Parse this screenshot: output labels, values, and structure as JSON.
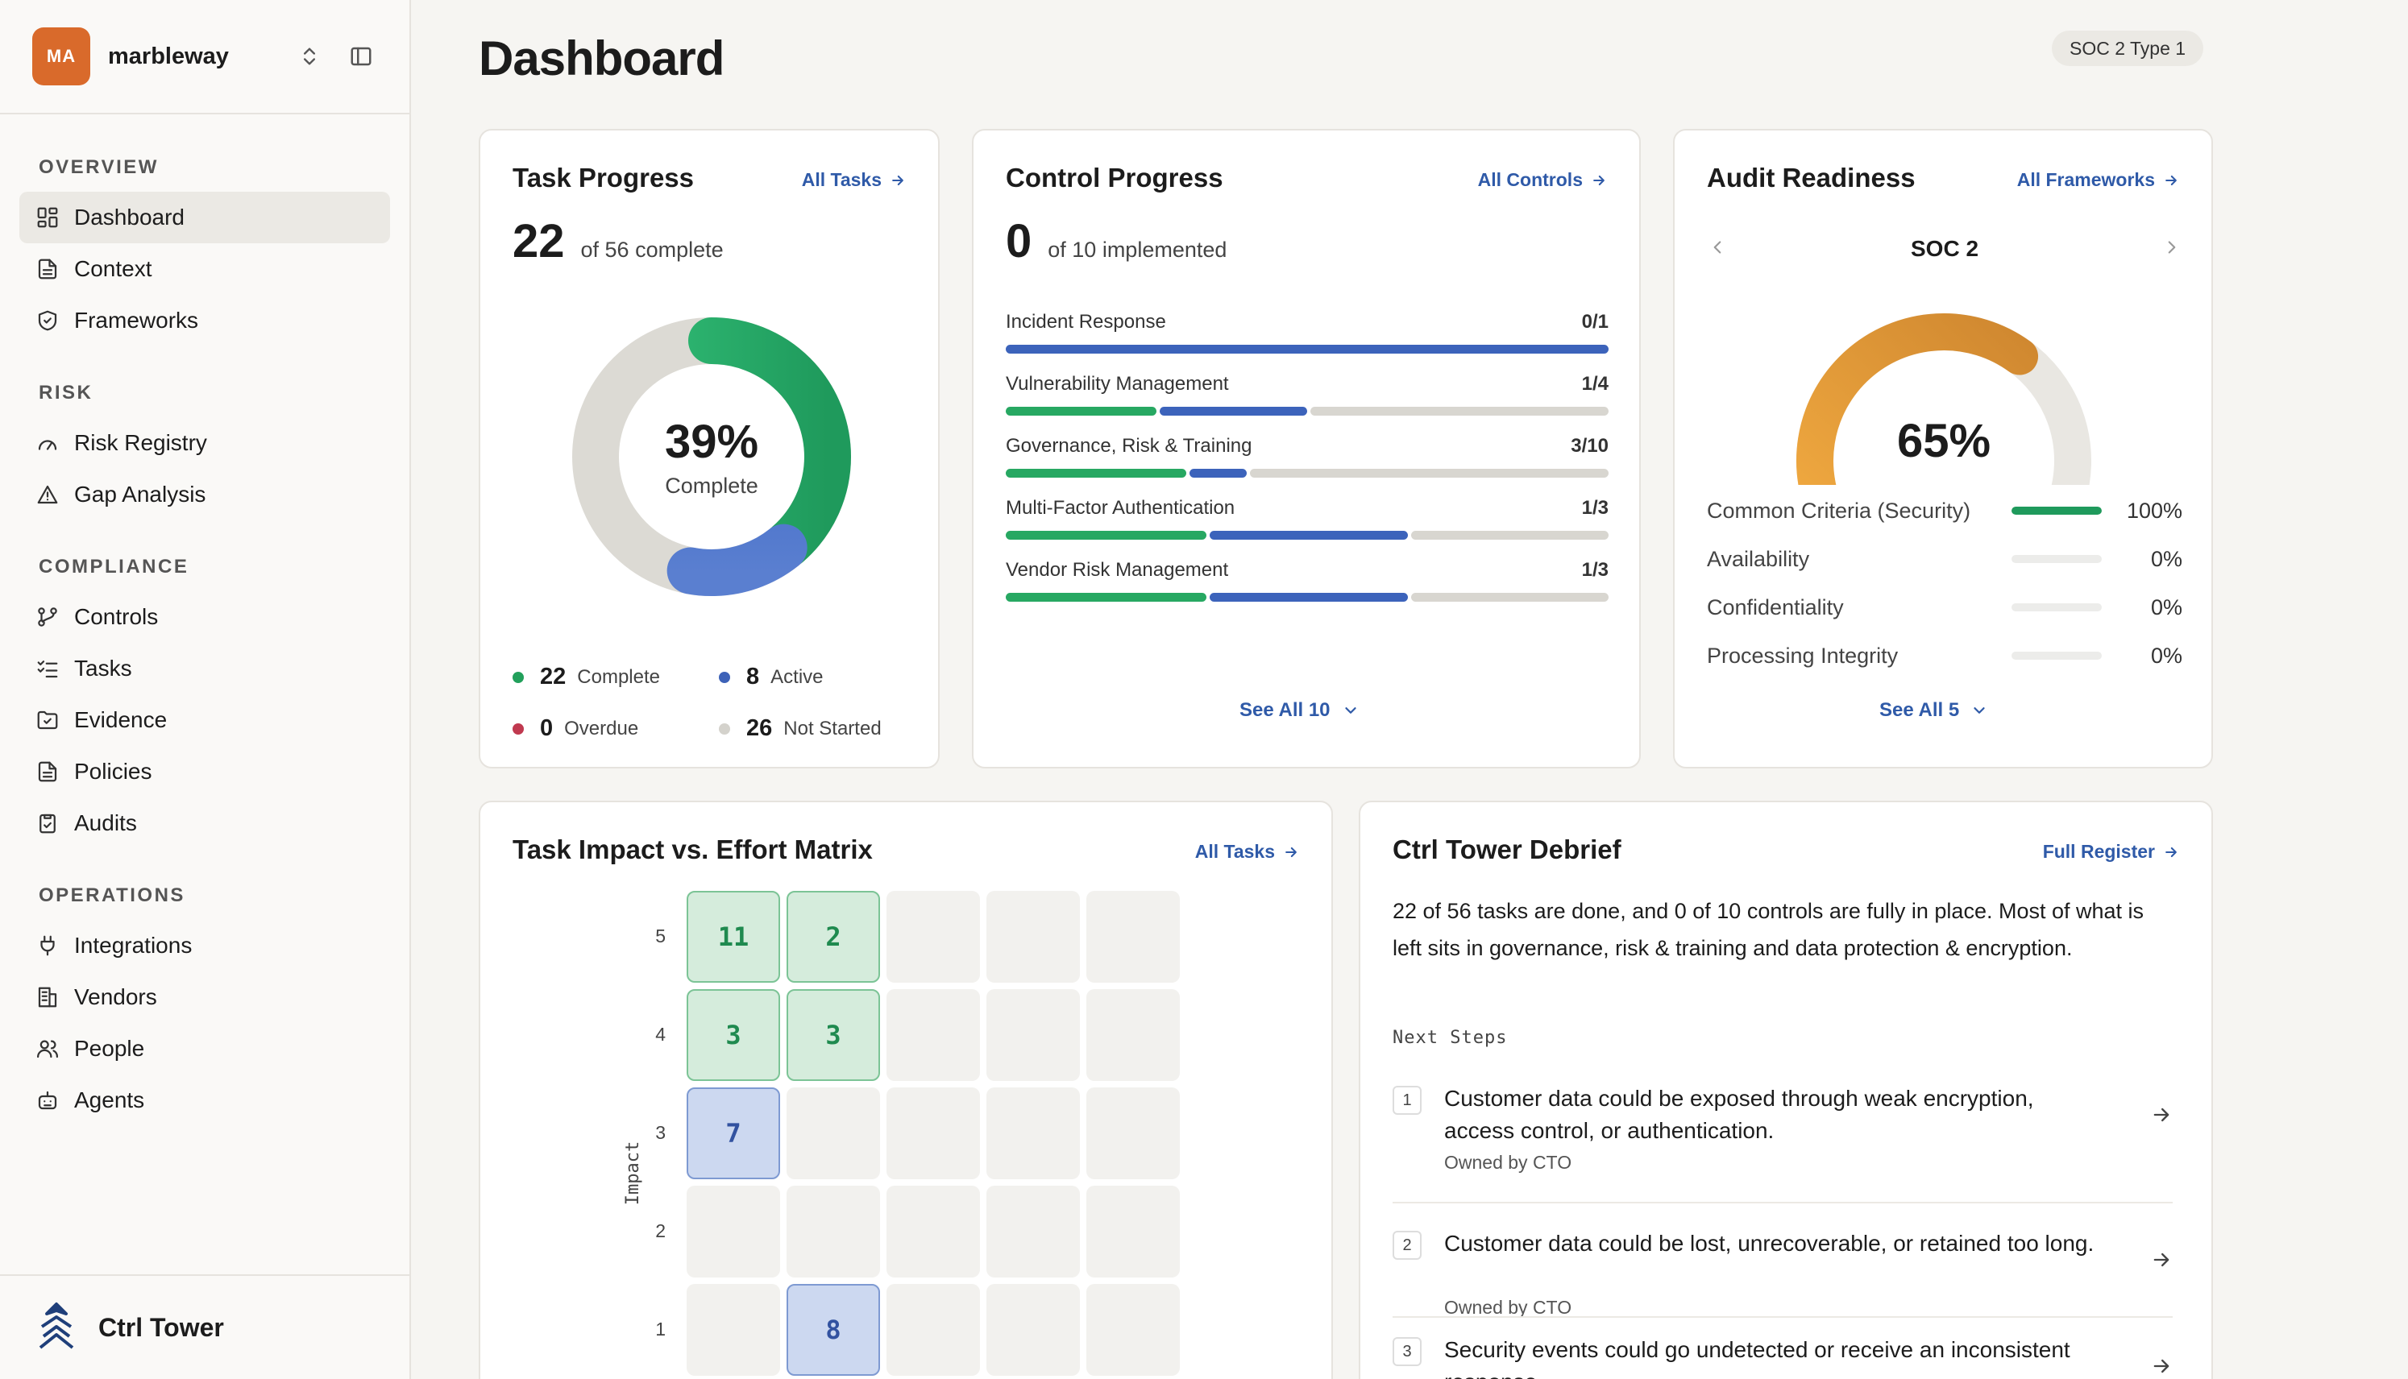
{
  "org": {
    "initials": "MA",
    "name": "marbleway"
  },
  "nav": {
    "sections": [
      {
        "heading": "OVERVIEW",
        "items": [
          {
            "label": "Dashboard",
            "icon": "dashboard-icon",
            "active": true
          },
          {
            "label": "Context",
            "icon": "document-icon"
          },
          {
            "label": "Frameworks",
            "icon": "shield-check-icon"
          }
        ]
      },
      {
        "heading": "RISK",
        "items": [
          {
            "label": "Risk Registry",
            "icon": "gauge-icon"
          },
          {
            "label": "Gap Analysis",
            "icon": "warning-icon"
          }
        ]
      },
      {
        "heading": "COMPLIANCE",
        "items": [
          {
            "label": "Controls",
            "icon": "branch-icon"
          },
          {
            "label": "Tasks",
            "icon": "checklist-icon"
          },
          {
            "label": "Evidence",
            "icon": "folder-check-icon"
          },
          {
            "label": "Policies",
            "icon": "document-icon"
          },
          {
            "label": "Audits",
            "icon": "clipboard-icon"
          }
        ]
      },
      {
        "heading": "OPERATIONS",
        "items": [
          {
            "label": "Integrations",
            "icon": "plug-icon"
          },
          {
            "label": "Vendors",
            "icon": "building-icon"
          },
          {
            "label": "People",
            "icon": "users-icon"
          },
          {
            "label": "Agents",
            "icon": "bot-icon"
          }
        ]
      }
    ]
  },
  "brand": {
    "name": "Ctrl Tower"
  },
  "page": {
    "title": "Dashboard",
    "framework_badge": "SOC 2 Type 1"
  },
  "task_progress": {
    "title": "Task Progress",
    "link": "All Tasks",
    "complete": "22",
    "of_text": "of 56 complete",
    "percent_text": "39%",
    "center_label": "Complete",
    "total": 56,
    "legend": [
      {
        "value": "22",
        "label": "Complete",
        "color": "#22a05b"
      },
      {
        "value": "8",
        "label": "Active",
        "color": "#3d62b8"
      },
      {
        "value": "0",
        "label": "Overdue",
        "color": "#c0394f"
      },
      {
        "value": "26",
        "label": "Not Started",
        "color": "#d4d2cc"
      }
    ]
  },
  "control_progress": {
    "title": "Control Progress",
    "link": "All Controls",
    "implemented": "0",
    "of_text": "of 10 implemented",
    "see_all": "See All 10",
    "rows": [
      {
        "name": "Incident Response",
        "fraction": "0/1",
        "green": 0,
        "blue": 1,
        "total": 1
      },
      {
        "name": "Vulnerability Management",
        "fraction": "1/4",
        "green": 1,
        "blue": 1,
        "total": 4
      },
      {
        "name": "Governance, Risk & Training",
        "fraction": "3/10",
        "green": 3,
        "blue": 1,
        "total": 10
      },
      {
        "name": "Multi-Factor Authentication",
        "fraction": "1/3",
        "green": 1,
        "blue": 1,
        "total": 3
      },
      {
        "name": "Vendor Risk Management",
        "fraction": "1/3",
        "green": 1,
        "blue": 1,
        "total": 3
      }
    ]
  },
  "audit_readiness": {
    "title": "Audit Readiness",
    "link": "All Frameworks",
    "framework": "SOC 2",
    "percent_text": "65%",
    "percent": 65,
    "see_all": "See All 5",
    "criteria": [
      {
        "name": "Common Criteria (Security)",
        "pct_text": "100%",
        "pct": 100
      },
      {
        "name": "Availability",
        "pct_text": "0%",
        "pct": 0
      },
      {
        "name": "Confidentiality",
        "pct_text": "0%",
        "pct": 0
      },
      {
        "name": "Processing Integrity",
        "pct_text": "0%",
        "pct": 0
      }
    ]
  },
  "matrix": {
    "title": "Task Impact vs. Effort Matrix",
    "link": "All Tasks",
    "y_axis_label": "Impact",
    "y_ticks": [
      "5",
      "4",
      "3",
      "2",
      "1"
    ],
    "cells": [
      {
        "impact": 5,
        "effort": 1,
        "value": "11",
        "tone": "green"
      },
      {
        "impact": 5,
        "effort": 2,
        "value": "2",
        "tone": "green"
      },
      {
        "impact": 4,
        "effort": 1,
        "value": "3",
        "tone": "green"
      },
      {
        "impact": 4,
        "effort": 2,
        "value": "3",
        "tone": "green"
      },
      {
        "impact": 3,
        "effort": 1,
        "value": "7",
        "tone": "blue"
      },
      {
        "impact": 1,
        "effort": 2,
        "value": "8",
        "tone": "blue"
      }
    ]
  },
  "debrief": {
    "title": "Ctrl Tower Debrief",
    "link": "Full Register",
    "summary": "22 of 56 tasks are done, and 0 of 10 controls are fully in place. Most of what is left sits in governance, risk & training and data protection & encryption.",
    "next_steps_label": "Next Steps",
    "steps": [
      {
        "num": "1",
        "title": "Customer data could be exposed through weak encryption, access control, or authentication.",
        "owner": "Owned by CTO"
      },
      {
        "num": "2",
        "title": "Customer data could be lost, unrecoverable, or retained too long.",
        "owner": "Owned by CTO"
      },
      {
        "num": "3",
        "title": "Security events could go undetected or receive an inconsistent response.",
        "owner": ""
      }
    ]
  }
}
